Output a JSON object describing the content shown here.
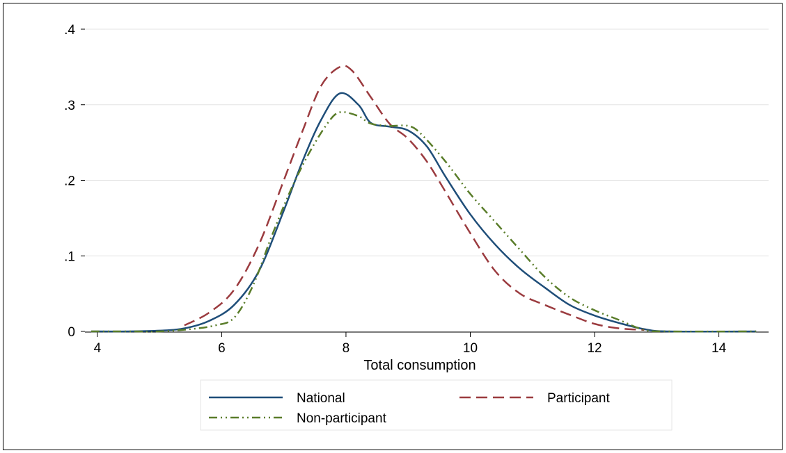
{
  "chart_data": {
    "type": "line",
    "title": "",
    "xlabel": "Total consumption",
    "ylabel": "",
    "xlim": [
      3.8,
      14.8
    ],
    "ylim": [
      0,
      0.4
    ],
    "xticks": [
      {
        "value": 4,
        "label": "4"
      },
      {
        "value": 6,
        "label": "6"
      },
      {
        "value": 8,
        "label": "8"
      },
      {
        "value": 10,
        "label": "10"
      },
      {
        "value": 12,
        "label": "12"
      },
      {
        "value": 14,
        "label": "14"
      }
    ],
    "yticks": [
      {
        "value": 0,
        "label": "0"
      },
      {
        "value": 0.1,
        "label": ".1"
      },
      {
        "value": 0.2,
        "label": ".2"
      },
      {
        "value": 0.3,
        "label": ".3"
      },
      {
        "value": 0.4,
        "label": ".4"
      }
    ],
    "grid": true,
    "legend_position": "bottom",
    "series": [
      {
        "name": "National",
        "color": "#1f4e79",
        "dash": "solid",
        "points": [
          [
            3.9,
            0.0
          ],
          [
            4.5,
            0.0
          ],
          [
            5.0,
            0.001
          ],
          [
            5.4,
            0.004
          ],
          [
            5.8,
            0.014
          ],
          [
            6.2,
            0.035
          ],
          [
            6.6,
            0.08
          ],
          [
            7.0,
            0.16
          ],
          [
            7.3,
            0.225
          ],
          [
            7.6,
            0.28
          ],
          [
            7.9,
            0.315
          ],
          [
            8.2,
            0.3
          ],
          [
            8.4,
            0.276
          ],
          [
            8.7,
            0.271
          ],
          [
            9.0,
            0.266
          ],
          [
            9.3,
            0.245
          ],
          [
            9.6,
            0.205
          ],
          [
            10.0,
            0.155
          ],
          [
            10.4,
            0.115
          ],
          [
            10.8,
            0.083
          ],
          [
            11.2,
            0.058
          ],
          [
            11.6,
            0.035
          ],
          [
            12.0,
            0.021
          ],
          [
            12.4,
            0.011
          ],
          [
            12.8,
            0.003
          ],
          [
            13.2,
            0.0
          ],
          [
            14.6,
            0.0
          ]
        ]
      },
      {
        "name": "Participant",
        "color": "#9b3b3f",
        "dash": "long-dash",
        "points": [
          [
            5.4,
            0.008
          ],
          [
            5.8,
            0.025
          ],
          [
            6.2,
            0.055
          ],
          [
            6.6,
            0.115
          ],
          [
            7.0,
            0.2
          ],
          [
            7.3,
            0.265
          ],
          [
            7.6,
            0.325
          ],
          [
            7.9,
            0.35
          ],
          [
            8.1,
            0.345
          ],
          [
            8.4,
            0.31
          ],
          [
            8.7,
            0.275
          ],
          [
            9.0,
            0.255
          ],
          [
            9.3,
            0.225
          ],
          [
            9.6,
            0.185
          ],
          [
            10.0,
            0.13
          ],
          [
            10.4,
            0.08
          ],
          [
            10.8,
            0.05
          ],
          [
            11.2,
            0.035
          ],
          [
            11.6,
            0.022
          ],
          [
            12.0,
            0.01
          ],
          [
            12.4,
            0.004
          ],
          [
            12.8,
            0.002
          ]
        ]
      },
      {
        "name": "Non-participant",
        "color": "#5a7d2a",
        "dash": "dash-dot-dot",
        "points": [
          [
            3.9,
            0.0
          ],
          [
            4.5,
            0.0
          ],
          [
            5.0,
            0.0
          ],
          [
            5.5,
            0.003
          ],
          [
            5.9,
            0.008
          ],
          [
            6.2,
            0.018
          ],
          [
            6.5,
            0.06
          ],
          [
            6.8,
            0.125
          ],
          [
            7.1,
            0.185
          ],
          [
            7.4,
            0.235
          ],
          [
            7.7,
            0.275
          ],
          [
            7.9,
            0.29
          ],
          [
            8.2,
            0.285
          ],
          [
            8.4,
            0.275
          ],
          [
            8.7,
            0.272
          ],
          [
            9.0,
            0.272
          ],
          [
            9.2,
            0.262
          ],
          [
            9.6,
            0.225
          ],
          [
            10.0,
            0.182
          ],
          [
            10.4,
            0.145
          ],
          [
            10.8,
            0.108
          ],
          [
            11.2,
            0.072
          ],
          [
            11.6,
            0.045
          ],
          [
            12.0,
            0.028
          ],
          [
            12.4,
            0.015
          ],
          [
            12.8,
            0.002
          ],
          [
            13.2,
            0.0
          ],
          [
            14.6,
            0.0
          ]
        ]
      }
    ]
  }
}
